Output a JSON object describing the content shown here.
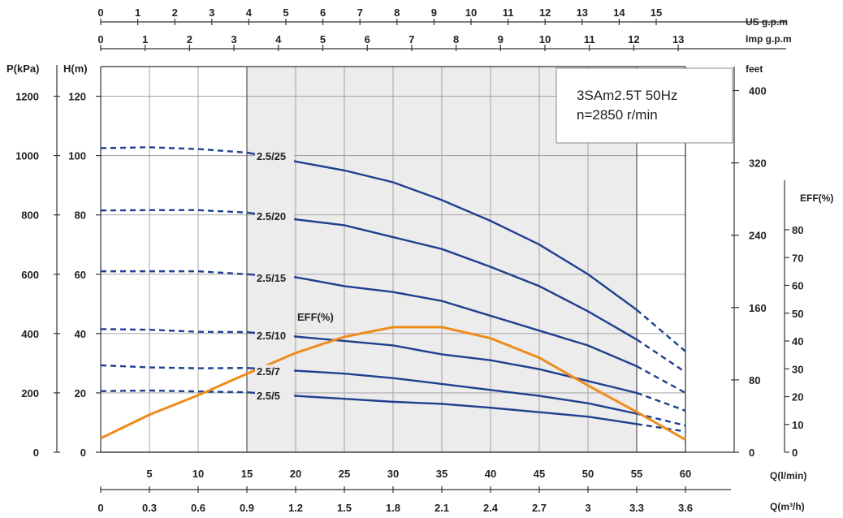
{
  "chart_data": {
    "type": "line",
    "title": "",
    "model_box": {
      "line1": "3SAm2.5T 50Hz",
      "line2": "n=2850 r/min"
    },
    "axes": {
      "us_gpm": {
        "label": "US g.p.m",
        "ticks": [
          "0",
          "1",
          "2",
          "3",
          "4",
          "5",
          "6",
          "7",
          "8",
          "9",
          "10",
          "11",
          "12",
          "13",
          "14",
          "15"
        ]
      },
      "imp_gpm": {
        "label": "Imp g.p.m",
        "ticks": [
          "0",
          "1",
          "2",
          "3",
          "4",
          "5",
          "6",
          "7",
          "8",
          "9",
          "10",
          "11",
          "12",
          "13"
        ]
      },
      "q_lmin": {
        "label": "Q(l/min)",
        "ticks": [
          "5",
          "10",
          "15",
          "20",
          "25",
          "30",
          "35",
          "40",
          "45",
          "50",
          "55",
          "60"
        ]
      },
      "q_m3h": {
        "label": "Q(m³/h)",
        "ticks": [
          "0",
          "0.3",
          "0.6",
          "0.9",
          "1.2",
          "1.5",
          "1.8",
          "2.1",
          "2.4",
          "2.7",
          "3",
          "3.3",
          "3.6"
        ]
      },
      "pressure": {
        "label": "P(kPa)",
        "ticks": [
          "0",
          "200",
          "400",
          "600",
          "800",
          "1000",
          "1200"
        ]
      },
      "head": {
        "label": "H(m)",
        "ticks": [
          "0",
          "20",
          "40",
          "60",
          "80",
          "100",
          "120"
        ]
      },
      "feet": {
        "label": "feet",
        "ticks": [
          "0",
          "80",
          "160",
          "240",
          "320",
          "400"
        ]
      },
      "efficiency": {
        "label": "EFF(%)",
        "ticks": [
          "0",
          "10",
          "20",
          "30",
          "40",
          "50",
          "60",
          "70",
          "80"
        ]
      }
    },
    "xlim": [
      0,
      60
    ],
    "ylim": [
      0,
      130
    ],
    "recommended_range": [
      15,
      55
    ],
    "series": [
      {
        "name": "2.5/25",
        "color": "#1f3f8f",
        "points": [
          [
            0,
            102.5
          ],
          [
            5,
            102.8
          ],
          [
            10,
            102.2
          ],
          [
            15,
            101
          ],
          [
            20,
            98
          ],
          [
            25,
            95
          ],
          [
            30,
            91
          ],
          [
            35,
            85
          ],
          [
            40,
            78
          ],
          [
            45,
            70
          ],
          [
            50,
            60
          ],
          [
            55,
            48
          ],
          [
            60,
            34
          ]
        ]
      },
      {
        "name": "2.5/20",
        "color": "#1f3f8f",
        "points": [
          [
            0,
            81.5
          ],
          [
            5,
            81.6
          ],
          [
            10,
            81.6
          ],
          [
            15,
            80.8
          ],
          [
            20,
            78.5
          ],
          [
            25,
            76.5
          ],
          [
            30,
            72.5
          ],
          [
            35,
            68.5
          ],
          [
            40,
            62.5
          ],
          [
            45,
            56
          ],
          [
            50,
            47.5
          ],
          [
            55,
            38
          ],
          [
            60,
            27
          ]
        ]
      },
      {
        "name": "2.5/15",
        "color": "#1f3f8f",
        "points": [
          [
            0,
            61
          ],
          [
            5,
            61
          ],
          [
            10,
            61
          ],
          [
            15,
            60
          ],
          [
            20,
            59
          ],
          [
            25,
            56
          ],
          [
            30,
            54
          ],
          [
            35,
            51
          ],
          [
            40,
            46
          ],
          [
            45,
            41
          ],
          [
            50,
            36
          ],
          [
            55,
            29
          ],
          [
            60,
            20
          ]
        ]
      },
      {
        "name": "2.5/10",
        "color": "#1f3f8f",
        "points": [
          [
            0,
            41.5
          ],
          [
            5,
            41.3
          ],
          [
            10,
            40.6
          ],
          [
            15,
            40.5
          ],
          [
            20,
            39
          ],
          [
            25,
            37.5
          ],
          [
            30,
            36
          ],
          [
            35,
            33
          ],
          [
            40,
            31
          ],
          [
            45,
            28
          ],
          [
            50,
            24
          ],
          [
            55,
            20
          ],
          [
            60,
            14
          ]
        ]
      },
      {
        "name": "2.5/7",
        "color": "#1f3f8f",
        "points": [
          [
            0,
            29.3
          ],
          [
            5,
            28.6
          ],
          [
            10,
            28.3
          ],
          [
            15,
            28.4
          ],
          [
            20,
            27.5
          ],
          [
            25,
            26.5
          ],
          [
            30,
            25
          ],
          [
            35,
            23
          ],
          [
            40,
            21
          ],
          [
            45,
            19
          ],
          [
            50,
            16.5
          ],
          [
            55,
            13
          ],
          [
            60,
            9
          ]
        ]
      },
      {
        "name": "2.5/5",
        "color": "#1f3f8f",
        "points": [
          [
            0,
            20.6
          ],
          [
            5,
            20.8
          ],
          [
            10,
            20.5
          ],
          [
            15,
            20.2
          ],
          [
            20,
            19
          ],
          [
            25,
            18
          ],
          [
            30,
            17
          ],
          [
            35,
            16.3
          ],
          [
            40,
            15
          ],
          [
            45,
            13.5
          ],
          [
            50,
            12
          ],
          [
            55,
            9.5
          ],
          [
            60,
            7
          ]
        ]
      }
    ],
    "efficiency_curve": {
      "name": "EFF(%)",
      "color": "#ef8b1d",
      "points": [
        [
          0,
          5
        ],
        [
          5,
          13.5
        ],
        [
          10,
          20.5
        ],
        [
          15,
          28.2
        ],
        [
          20,
          35.7
        ],
        [
          25,
          41.5
        ],
        [
          30,
          45
        ],
        [
          35,
          45
        ],
        [
          40,
          41
        ],
        [
          45,
          34
        ],
        [
          50,
          24
        ],
        [
          55,
          14.5
        ],
        [
          60,
          4.5
        ]
      ]
    }
  }
}
